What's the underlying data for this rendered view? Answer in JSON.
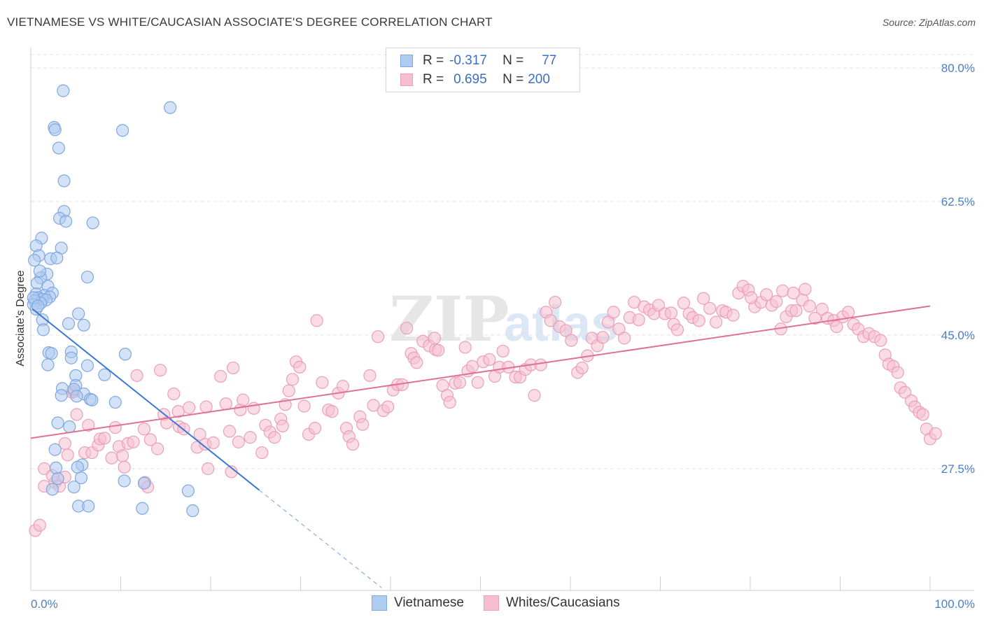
{
  "header": {
    "title": "VIETNAMESE VS WHITE/CAUCASIAN ASSOCIATE'S DEGREE CORRELATION CHART",
    "source": "Source: ZipAtlas.com"
  },
  "legend": {
    "rows": [
      {
        "r_label": "R =",
        "r_value": "-0.317",
        "n_label": "N =",
        "n_value": "77"
      },
      {
        "r_label": "R =",
        "r_value": "0.695",
        "n_label": "N =",
        "n_value": "200"
      }
    ]
  },
  "colors": {
    "blue_fill": "#aecbf0",
    "blue_stroke": "#7ea8e0",
    "blue_line": "#3a78d6",
    "pink_fill": "#f6bfd0",
    "pink_stroke": "#eb9fb8",
    "pink_line": "#e07098",
    "axis_text": "#4a7fc8",
    "grid": "#e3e3e3"
  },
  "chart_data": {
    "type": "scatter",
    "title": "VIETNAMESE VS WHITE/CAUCASIAN ASSOCIATE'S DEGREE CORRELATION CHART",
    "xlabel": "",
    "ylabel": "Associate's Degree",
    "xlim": [
      0,
      100
    ],
    "ylim": [
      10,
      83
    ],
    "x_tick_labels": [
      "0.0%",
      "100.0%"
    ],
    "y_ticks": [
      27.5,
      45.0,
      62.5,
      80.0
    ],
    "y_tick_labels": [
      "27.5%",
      "45.0%",
      "62.5%",
      "80.0%"
    ],
    "grid": true,
    "legend_position": "top-center",
    "series": [
      {
        "name": "Vietnamese",
        "color": "#aecbf0",
        "trend": {
          "x": [
            0.2,
            25.4
          ],
          "y": [
            48.4,
            24.7
          ],
          "dashed_extension_to_x": 39.0
        },
        "points": [
          [
            3.6,
            77.0
          ],
          [
            15.5,
            74.8
          ],
          [
            2.6,
            72.2
          ],
          [
            2.7,
            71.9
          ],
          [
            10.2,
            71.8
          ],
          [
            3.1,
            69.5
          ],
          [
            3.7,
            65.2
          ],
          [
            3.7,
            61.2
          ],
          [
            3.2,
            60.3
          ],
          [
            3.9,
            59.9
          ],
          [
            6.9,
            59.7
          ],
          [
            1.2,
            57.7
          ],
          [
            0.6,
            56.7
          ],
          [
            3.4,
            56.4
          ],
          [
            2.2,
            55.0
          ],
          [
            2.9,
            55.1
          ],
          [
            1.8,
            53.0
          ],
          [
            1.1,
            52.5
          ],
          [
            6.3,
            52.6
          ],
          [
            0.7,
            51.8
          ],
          [
            1.9,
            51.4
          ],
          [
            2.4,
            50.5
          ],
          [
            0.6,
            50.4
          ],
          [
            1.5,
            50.2
          ],
          [
            2.1,
            50.0
          ],
          [
            0.8,
            49.9
          ],
          [
            1.3,
            49.7
          ],
          [
            0.4,
            49.5
          ],
          [
            1.7,
            49.6
          ],
          [
            1.1,
            49.2
          ],
          [
            0.3,
            49.0
          ],
          [
            0.6,
            48.4
          ],
          [
            1.3,
            47.0
          ],
          [
            5.3,
            47.8
          ],
          [
            4.2,
            46.5
          ],
          [
            5.9,
            46.3
          ],
          [
            1.4,
            45.7
          ],
          [
            2.0,
            42.7
          ],
          [
            4.5,
            42.8
          ],
          [
            2.3,
            42.6
          ],
          [
            10.5,
            42.5
          ],
          [
            4.5,
            42.0
          ],
          [
            1.9,
            41.1
          ],
          [
            6.3,
            41.0
          ],
          [
            5.0,
            39.7
          ],
          [
            8.2,
            39.8
          ],
          [
            5.0,
            38.4
          ],
          [
            3.5,
            38.0
          ],
          [
            4.8,
            37.9
          ],
          [
            5.9,
            37.3
          ],
          [
            3.4,
            37.1
          ],
          [
            5.1,
            37.0
          ],
          [
            6.6,
            36.6
          ],
          [
            9.4,
            36.2
          ],
          [
            6.8,
            36.5
          ],
          [
            3.0,
            33.5
          ],
          [
            4.3,
            33.0
          ],
          [
            2.7,
            30.0
          ],
          [
            5.7,
            28.0
          ],
          [
            2.8,
            27.6
          ],
          [
            5.2,
            27.7
          ],
          [
            3.0,
            26.2
          ],
          [
            5.6,
            26.3
          ],
          [
            10.4,
            25.9
          ],
          [
            12.6,
            25.6
          ],
          [
            2.4,
            24.8
          ],
          [
            4.8,
            25.1
          ],
          [
            17.5,
            24.6
          ],
          [
            5.3,
            22.6
          ],
          [
            12.4,
            22.3
          ],
          [
            6.4,
            22.6
          ],
          [
            18.0,
            22.0
          ],
          [
            0.9,
            55.4
          ],
          [
            1.0,
            53.4
          ],
          [
            0.4,
            54.8
          ],
          [
            0.3,
            49.9
          ],
          [
            0.8,
            48.8
          ]
        ]
      },
      {
        "name": "Whites/Caucasians",
        "color": "#f6bfd0",
        "trend": {
          "x": [
            0,
            100
          ],
          "y": [
            31.5,
            48.8
          ]
        },
        "points": [
          [
            0.5,
            19.4
          ],
          [
            1.0,
            20.1
          ],
          [
            1.5,
            25.2
          ],
          [
            1.5,
            27.5
          ],
          [
            2.7,
            25.7
          ],
          [
            3.2,
            25.2
          ],
          [
            2.4,
            26.6
          ],
          [
            3.8,
            26.4
          ],
          [
            3.8,
            30.8
          ],
          [
            4.1,
            29.3
          ],
          [
            4.6,
            37.5
          ],
          [
            4.8,
            37.6
          ],
          [
            5.1,
            34.6
          ],
          [
            6.0,
            29.6
          ],
          [
            6.4,
            33.2
          ],
          [
            6.8,
            29.6
          ],
          [
            7.5,
            30.6
          ],
          [
            7.7,
            31.4
          ],
          [
            8.2,
            31.5
          ],
          [
            9.0,
            28.9
          ],
          [
            9.4,
            32.9
          ],
          [
            9.8,
            30.4
          ],
          [
            10.2,
            29.2
          ],
          [
            10.4,
            27.7
          ],
          [
            10.8,
            30.8
          ],
          [
            11.4,
            31.0
          ],
          [
            11.8,
            39.7
          ],
          [
            12.6,
            32.7
          ],
          [
            12.7,
            25.7
          ],
          [
            13.0,
            25.1
          ],
          [
            13.3,
            31.3
          ],
          [
            14.1,
            30.1
          ],
          [
            14.4,
            40.4
          ],
          [
            14.8,
            34.6
          ],
          [
            15.1,
            33.5
          ],
          [
            15.9,
            37.3
          ],
          [
            16.4,
            35.0
          ],
          [
            16.5,
            33.0
          ],
          [
            17.0,
            32.7
          ],
          [
            17.6,
            35.5
          ],
          [
            18.5,
            30.3
          ],
          [
            18.8,
            32.0
          ],
          [
            19.4,
            30.7
          ],
          [
            19.5,
            35.6
          ],
          [
            19.7,
            27.5
          ],
          [
            20.3,
            30.9
          ],
          [
            21.1,
            39.6
          ],
          [
            21.7,
            36.0
          ],
          [
            22.1,
            32.4
          ],
          [
            22.3,
            27.1
          ],
          [
            22.5,
            40.7
          ],
          [
            23.1,
            31.0
          ],
          [
            23.3,
            35.2
          ],
          [
            23.6,
            36.5
          ],
          [
            24.4,
            31.6
          ],
          [
            24.8,
            35.4
          ],
          [
            25.7,
            29.6
          ],
          [
            26.1,
            33.2
          ],
          [
            26.6,
            32.3
          ],
          [
            27.1,
            31.6
          ],
          [
            27.8,
            34.0
          ],
          [
            28.0,
            33.1
          ],
          [
            28.3,
            35.9
          ],
          [
            28.7,
            37.7
          ],
          [
            29.1,
            39.2
          ],
          [
            29.5,
            41.5
          ],
          [
            29.9,
            40.8
          ],
          [
            30.4,
            35.7
          ],
          [
            30.9,
            32.0
          ],
          [
            31.6,
            32.8
          ],
          [
            31.8,
            46.9
          ],
          [
            32.4,
            38.8
          ],
          [
            33.1,
            35.2
          ],
          [
            33.5,
            35.0
          ],
          [
            34.2,
            37.4
          ],
          [
            34.7,
            38.3
          ],
          [
            35.1,
            32.8
          ],
          [
            35.4,
            31.7
          ],
          [
            35.8,
            30.7
          ],
          [
            36.6,
            34.3
          ],
          [
            36.9,
            33.3
          ],
          [
            37.7,
            39.7
          ],
          [
            38.1,
            35.8
          ],
          [
            38.6,
            44.8
          ],
          [
            39.2,
            35.1
          ],
          [
            39.7,
            35.6
          ],
          [
            40.3,
            37.8
          ],
          [
            40.8,
            38.5
          ],
          [
            41.3,
            38.5
          ],
          [
            41.8,
            45.9
          ],
          [
            42.3,
            42.6
          ],
          [
            42.6,
            42.0
          ],
          [
            42.9,
            41.4
          ],
          [
            43.6,
            44.2
          ],
          [
            44.3,
            43.6
          ],
          [
            45.0,
            43.1
          ],
          [
            45.3,
            43.0
          ],
          [
            44.9,
            44.6
          ],
          [
            45.8,
            38.4
          ],
          [
            46.3,
            37.1
          ],
          [
            46.6,
            36.2
          ],
          [
            47.2,
            38.7
          ],
          [
            47.7,
            38.8
          ],
          [
            48.3,
            43.4
          ],
          [
            48.6,
            40.3
          ],
          [
            49.1,
            40.9
          ],
          [
            49.7,
            38.8
          ],
          [
            50.3,
            41.5
          ],
          [
            51.0,
            41.8
          ],
          [
            51.6,
            39.6
          ],
          [
            52.1,
            40.8
          ],
          [
            52.5,
            42.9
          ],
          [
            53.1,
            40.8
          ],
          [
            53.9,
            39.5
          ],
          [
            54.4,
            39.5
          ],
          [
            55.0,
            40.5
          ],
          [
            55.6,
            41.1
          ],
          [
            56.0,
            37.1
          ],
          [
            56.7,
            41.1
          ],
          [
            57.3,
            48.0
          ],
          [
            57.8,
            46.9
          ],
          [
            58.3,
            49.3
          ],
          [
            58.8,
            46.1
          ],
          [
            59.5,
            45.6
          ],
          [
            60.1,
            44.3
          ],
          [
            60.8,
            40.1
          ],
          [
            61.3,
            40.7
          ],
          [
            61.9,
            42.3
          ],
          [
            62.4,
            44.6
          ],
          [
            63.0,
            43.6
          ],
          [
            63.6,
            44.7
          ],
          [
            64.2,
            46.7
          ],
          [
            64.8,
            48.0
          ],
          [
            65.4,
            45.8
          ],
          [
            66.0,
            44.6
          ],
          [
            66.6,
            47.3
          ],
          [
            67.1,
            49.3
          ],
          [
            67.6,
            47.0
          ],
          [
            68.2,
            48.7
          ],
          [
            68.8,
            48.3
          ],
          [
            69.3,
            47.8
          ],
          [
            69.8,
            48.9
          ],
          [
            70.5,
            47.8
          ],
          [
            71.2,
            47.9
          ],
          [
            71.5,
            46.4
          ],
          [
            71.9,
            45.7
          ],
          [
            72.6,
            49.2
          ],
          [
            73.2,
            47.8
          ],
          [
            73.6,
            47.3
          ],
          [
            74.3,
            46.9
          ],
          [
            74.8,
            49.8
          ],
          [
            75.5,
            48.5
          ],
          [
            76.2,
            46.7
          ],
          [
            76.9,
            48.2
          ],
          [
            77.3,
            48.0
          ],
          [
            78.1,
            47.6
          ],
          [
            78.7,
            50.5
          ],
          [
            79.2,
            51.4
          ],
          [
            79.8,
            50.9
          ],
          [
            80.5,
            48.7
          ],
          [
            81.2,
            49.3
          ],
          [
            81.8,
            50.3
          ],
          [
            82.4,
            48.9
          ],
          [
            82.9,
            49.4
          ],
          [
            83.4,
            45.8
          ],
          [
            84.0,
            47.4
          ],
          [
            84.6,
            48.2
          ],
          [
            85.1,
            48.2
          ],
          [
            85.8,
            49.6
          ],
          [
            86.6,
            48.8
          ],
          [
            87.2,
            47.2
          ],
          [
            88.0,
            48.4
          ],
          [
            88.6,
            47.2
          ],
          [
            89.3,
            46.9
          ],
          [
            89.6,
            46.1
          ],
          [
            90.3,
            47.4
          ],
          [
            90.9,
            48.0
          ],
          [
            91.5,
            46.4
          ],
          [
            92.0,
            45.8
          ],
          [
            92.6,
            44.8
          ],
          [
            93.2,
            45.2
          ],
          [
            93.8,
            44.8
          ],
          [
            94.5,
            44.3
          ],
          [
            95.0,
            42.4
          ],
          [
            95.4,
            41.2
          ],
          [
            95.9,
            40.9
          ],
          [
            96.4,
            40.1
          ],
          [
            96.7,
            38.1
          ],
          [
            97.2,
            37.5
          ],
          [
            97.9,
            36.4
          ],
          [
            98.3,
            35.6
          ],
          [
            98.8,
            34.9
          ],
          [
            99.2,
            34.6
          ],
          [
            99.6,
            32.7
          ],
          [
            100.0,
            31.4
          ],
          [
            100.6,
            32.1
          ],
          [
            83.6,
            50.8
          ],
          [
            86.1,
            51.0
          ],
          [
            84.8,
            50.5
          ],
          [
            80.1,
            49.9
          ]
        ]
      }
    ]
  },
  "bottom_legend": {
    "items": [
      {
        "label": "Vietnamese"
      },
      {
        "label": "Whites/Caucasians"
      }
    ]
  },
  "watermark": "ZIPatlas"
}
